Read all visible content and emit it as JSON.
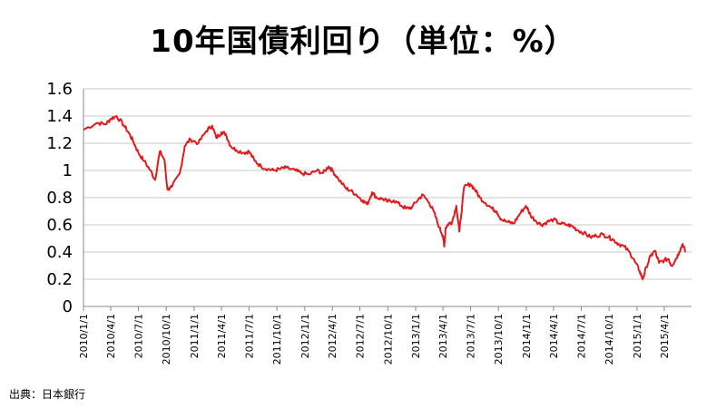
{
  "title": "10年国債利回り（単位：%）",
  "source": "出典：日本銀行",
  "chart_data": {
    "type": "line",
    "title": "10年国債利回り（単位：%）",
    "xlabel": "",
    "ylabel": "",
    "ylim": [
      0,
      1.6
    ],
    "y_ticks": [
      "0",
      "0.2",
      "0.4",
      "0.6",
      "0.8",
      "1",
      "1.2",
      "1.4",
      "1.6"
    ],
    "x_ticks": [
      "2010/1/1",
      "2010/4/1",
      "2010/7/1",
      "2010/10/1",
      "2011/1/1",
      "2011/4/1",
      "2011/7/1",
      "2011/10/1",
      "2012/1/1",
      "2012/4/1",
      "2012/7/1",
      "2012/10/1",
      "2013/1/1",
      "2013/4/1",
      "2013/7/1",
      "2013/10/1",
      "2014/1/1",
      "2014/4/1",
      "2014/7/1",
      "2014/10/1",
      "2015/1/1",
      "2015/4/1"
    ],
    "grid": true,
    "line_color": "#e31a1c",
    "series": [
      {
        "x": [
          "2010/1/1",
          "2010/2/15",
          "2010/3/15",
          "2010/4/1",
          "2010/4/20",
          "2010/5/15",
          "2010/6/1",
          "2010/6/15",
          "2010/7/1",
          "2010/7/20",
          "2010/8/10",
          "2010/8/25",
          "2010/9/10",
          "2010/9/25",
          "2010/10/5",
          "2010/10/20",
          "2010/11/15",
          "2010/12/1",
          "2010/12/20",
          "2011/1/15",
          "2011/2/10",
          "2011/3/1",
          "2011/3/15",
          "2011/4/1",
          "2011/4/15",
          "2011/5/1",
          "2011/5/20",
          "2011/6/15",
          "2011/7/1",
          "2011/7/20",
          "2011/8/10",
          "2011/9/1",
          "2011/9/20",
          "2011/10/10",
          "2011/11/1",
          "2011/12/1",
          "2011/12/20",
          "2012/1/15",
          "2012/2/10",
          "2012/3/1",
          "2012/3/20",
          "2012/4/1",
          "2012/4/20",
          "2012/5/15",
          "2012/6/1",
          "2012/6/20",
          "2012/7/10",
          "2012/7/25",
          "2012/8/10",
          "2012/8/25",
          "2012/9/15",
          "2012/10/1",
          "2012/10/20",
          "2012/11/15",
          "2012/12/1",
          "2012/12/20",
          "2013/1/10",
          "2013/1/25",
          "2013/2/15",
          "2013/3/1",
          "2013/3/20",
          "2013/4/1",
          "2013/4/5",
          "2013/4/10",
          "2013/4/20",
          "2013/5/1",
          "2013/5/15",
          "2013/5/25",
          "2013/6/10",
          "2013/7/1",
          "2013/7/15",
          "2013/8/1",
          "2013/8/20",
          "2013/9/10",
          "2013/9/25",
          "2013/10/10",
          "2013/11/1",
          "2013/11/20",
          "2013/12/10",
          "2013/12/31",
          "2014/1/15",
          "2014/2/1",
          "2014/2/20",
          "2014/3/10",
          "2014/4/1",
          "2014/4/20",
          "2014/5/15",
          "2014/6/1",
          "2014/6/20",
          "2014/7/10",
          "2014/7/31",
          "2014/8/20",
          "2014/9/10",
          "2014/9/30",
          "2014/10/15",
          "2014/11/1",
          "2014/11/20",
          "2014/12/10",
          "2014/12/25",
          "2015/1/10",
          "2015/1/20",
          "2015/2/1",
          "2015/2/15",
          "2015/3/1",
          "2015/3/15",
          "2015/4/1",
          "2015/4/15",
          "2015/4/25",
          "2015/5/10",
          "2015/5/20",
          "2015/6/1",
          "2015/6/10"
        ],
        "values": [
          1.3,
          1.35,
          1.34,
          1.38,
          1.4,
          1.33,
          1.27,
          1.21,
          1.13,
          1.07,
          1.0,
          0.93,
          1.14,
          1.08,
          0.86,
          0.88,
          0.98,
          1.18,
          1.23,
          1.2,
          1.29,
          1.33,
          1.24,
          1.28,
          1.27,
          1.18,
          1.15,
          1.13,
          1.14,
          1.07,
          1.03,
          1.01,
          1.0,
          1.01,
          1.02,
          1.0,
          0.98,
          0.97,
          1.0,
          0.98,
          1.03,
          1.0,
          0.94,
          0.87,
          0.85,
          0.82,
          0.78,
          0.75,
          0.84,
          0.8,
          0.79,
          0.77,
          0.78,
          0.74,
          0.72,
          0.73,
          0.79,
          0.82,
          0.76,
          0.7,
          0.58,
          0.52,
          0.44,
          0.58,
          0.61,
          0.62,
          0.74,
          0.55,
          0.88,
          0.9,
          0.86,
          0.8,
          0.76,
          0.72,
          0.7,
          0.64,
          0.62,
          0.61,
          0.68,
          0.74,
          0.67,
          0.63,
          0.6,
          0.62,
          0.64,
          0.61,
          0.6,
          0.59,
          0.56,
          0.54,
          0.51,
          0.52,
          0.53,
          0.51,
          0.49,
          0.46,
          0.44,
          0.39,
          0.33,
          0.26,
          0.2,
          0.29,
          0.37,
          0.41,
          0.32,
          0.34,
          0.35,
          0.3,
          0.35,
          0.4,
          0.46,
          0.4
        ]
      }
    ]
  }
}
